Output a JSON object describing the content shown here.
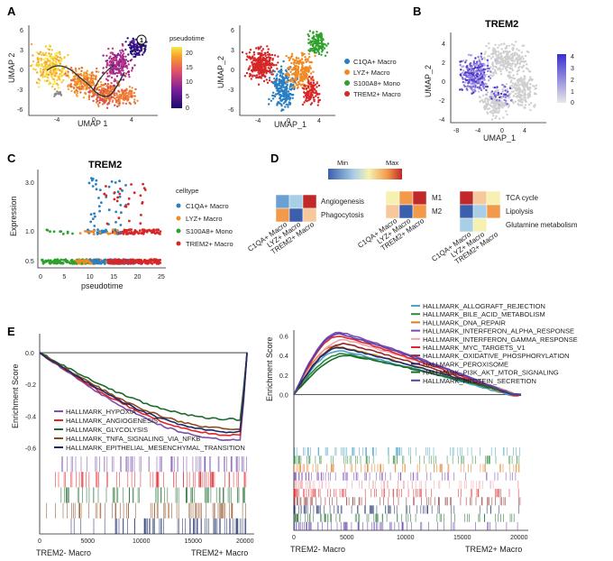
{
  "panel_labels": {
    "a": "A",
    "b": "B",
    "c": "C",
    "d": "D",
    "e": "E"
  },
  "panelA_left": {
    "xlabel": "UMAP 1",
    "ylabel": "UMAP 2",
    "root_marker": "1",
    "legend_title": "pseudotime",
    "colorbar_ticks": [
      "20",
      "15",
      "10",
      "5",
      "0"
    ],
    "xticks": [
      "-4",
      "0",
      "4"
    ],
    "yticks": [
      "6",
      "3",
      "0",
      "-3",
      "-6"
    ]
  },
  "panelA_right": {
    "xlabel": "UMAP_1",
    "ylabel": "UMAP_2",
    "xticks": [
      "-4",
      "0",
      "4"
    ],
    "yticks": [
      "6",
      "3",
      "0",
      "-3",
      "-6"
    ],
    "legend": [
      {
        "label": "C1QA+ Macro",
        "color": "#2a7fc1"
      },
      {
        "label": "LYZ+ Macro",
        "color": "#f08a24"
      },
      {
        "label": "S100A8+ Mono",
        "color": "#2ea02c"
      },
      {
        "label": "TREM2+ Macro",
        "color": "#d62728"
      }
    ]
  },
  "panelB": {
    "title": "TREM2",
    "xlabel": "UMAP_1",
    "ylabel": "UMAP_2",
    "xticks": [
      "-8",
      "-4",
      "0",
      "4"
    ],
    "yticks": [
      "4",
      "2",
      "0",
      "-2",
      "-4"
    ],
    "colorbar_ticks": [
      "4",
      "3",
      "2",
      "1",
      "0"
    ]
  },
  "chart_data": {
    "type": "scatter",
    "title": "TREM2",
    "xlabel": "pseudotime",
    "ylabel": "Expression",
    "x_ticks": [
      "0",
      "5",
      "10",
      "15",
      "20",
      "25"
    ],
    "y_ticks": [
      "3.0",
      "1.0",
      "0.5"
    ],
    "legend_title": "celltype",
    "series": [
      {
        "name": "C1QA+ Macro",
        "color": "#2a7fc1",
        "points": [
          [
            12,
            3.2
          ],
          [
            14,
            2.6
          ],
          [
            11,
            1.2
          ],
          [
            13,
            1.0
          ],
          [
            15,
            1.1
          ],
          [
            17,
            0.5
          ],
          [
            19,
            0.5
          ]
        ]
      },
      {
        "name": "LYZ+ Macro",
        "color": "#f08a24",
        "points": [
          [
            8,
            0.5
          ],
          [
            10,
            1.0
          ],
          [
            12,
            0.5
          ],
          [
            14,
            0.5
          ],
          [
            16,
            1.0
          ],
          [
            18,
            0.5
          ]
        ]
      },
      {
        "name": "S100A8+ Mono",
        "color": "#2ea02c",
        "points": [
          [
            0,
            1.0
          ],
          [
            2,
            0.5
          ],
          [
            4,
            0.5
          ],
          [
            6,
            0.5
          ],
          [
            8,
            1.0
          ],
          [
            10,
            0.5
          ]
        ]
      },
      {
        "name": "TREM2+ Macro",
        "color": "#d62728",
        "points": [
          [
            15,
            3.0
          ],
          [
            18,
            2.5
          ],
          [
            20,
            1.0
          ],
          [
            22,
            1.0
          ],
          [
            23,
            0.5
          ],
          [
            24,
            0.5
          ]
        ]
      }
    ]
  },
  "panelD": {
    "scale_min": "Min",
    "scale_max": "Max",
    "x_labels": [
      "C1QA+ Macro",
      "LYZ+ Macro",
      "TREM2+ Macro"
    ],
    "h1_rows": [
      "Angiogenesis",
      "Phagocytosis"
    ],
    "h2_rows": [
      "M1",
      "M2"
    ],
    "h3_rows": [
      "TCA cycle",
      "Lipolysis",
      "Glutamine metabolism"
    ]
  },
  "panelE_left": {
    "ylabel": "Enrichment Score",
    "yticks": [
      "0.0",
      "-0.2",
      "-0.4",
      "-0.6"
    ],
    "xticks": [
      "0",
      "5000",
      "10000",
      "15000",
      "20000"
    ],
    "x_left": "TREM2- Macro",
    "x_right": "TREM2+ Macro",
    "legend": [
      {
        "label": "HALLMARK_HYPOXIA",
        "color": "#7b52ae"
      },
      {
        "label": "HALLMARK_ANGIOGENESIS",
        "color": "#e0252a"
      },
      {
        "label": "HALLMARK_GLYCOLYSIS",
        "color": "#1b6b2e"
      },
      {
        "label": "HALLMARK_TNFA_SIGNALING_VIA_NFKB",
        "color": "#8c4a1c"
      },
      {
        "label": "HALLMARK_EPITHELIAL_MESENCHYMAL_TRANSITION",
        "color": "#1a2a66"
      }
    ]
  },
  "panelE_right": {
    "ylabel": "Enrichment Score",
    "yticks": [
      "0.6",
      "0.4",
      "0.2",
      "0.0"
    ],
    "xticks": [
      "0",
      "5000",
      "10000",
      "15000",
      "20000"
    ],
    "x_left": "TREM2- Macro",
    "x_right": "TREM2+ Macro",
    "legend": [
      {
        "label": "HALLMARK_ALLOGRAFT_REJECTION",
        "color": "#4da3c8"
      },
      {
        "label": "HALLMARK_BILE_ACID_METABOLISM",
        "color": "#2e8b3e"
      },
      {
        "label": "HALLMARK_DNA_REPAIR",
        "color": "#e07b1f"
      },
      {
        "label": "HALLMARK_INTERFERON_ALPHA_RESPONSE",
        "color": "#7a4bb0"
      },
      {
        "label": "HALLMARK_INTERFERON_GAMMA_RESPONSE",
        "color": "#f0a3a8"
      },
      {
        "label": "HALLMARK_MYC_TARGETS_V1",
        "color": "#e0252a"
      },
      {
        "label": "HALLMARK_OXIDATIVE_PHOSPHORYLATION",
        "color": "#8c2a2a"
      },
      {
        "label": "HALLMARK_PEROXISOME",
        "color": "#1a2a66"
      },
      {
        "label": "HALLMARK_PI3K_AKT_MTOR_SIGNALING",
        "color": "#1b6b2e"
      },
      {
        "label": "HALLMARK_PROTEIN_SECRETION",
        "color": "#5b3fa8"
      }
    ]
  }
}
